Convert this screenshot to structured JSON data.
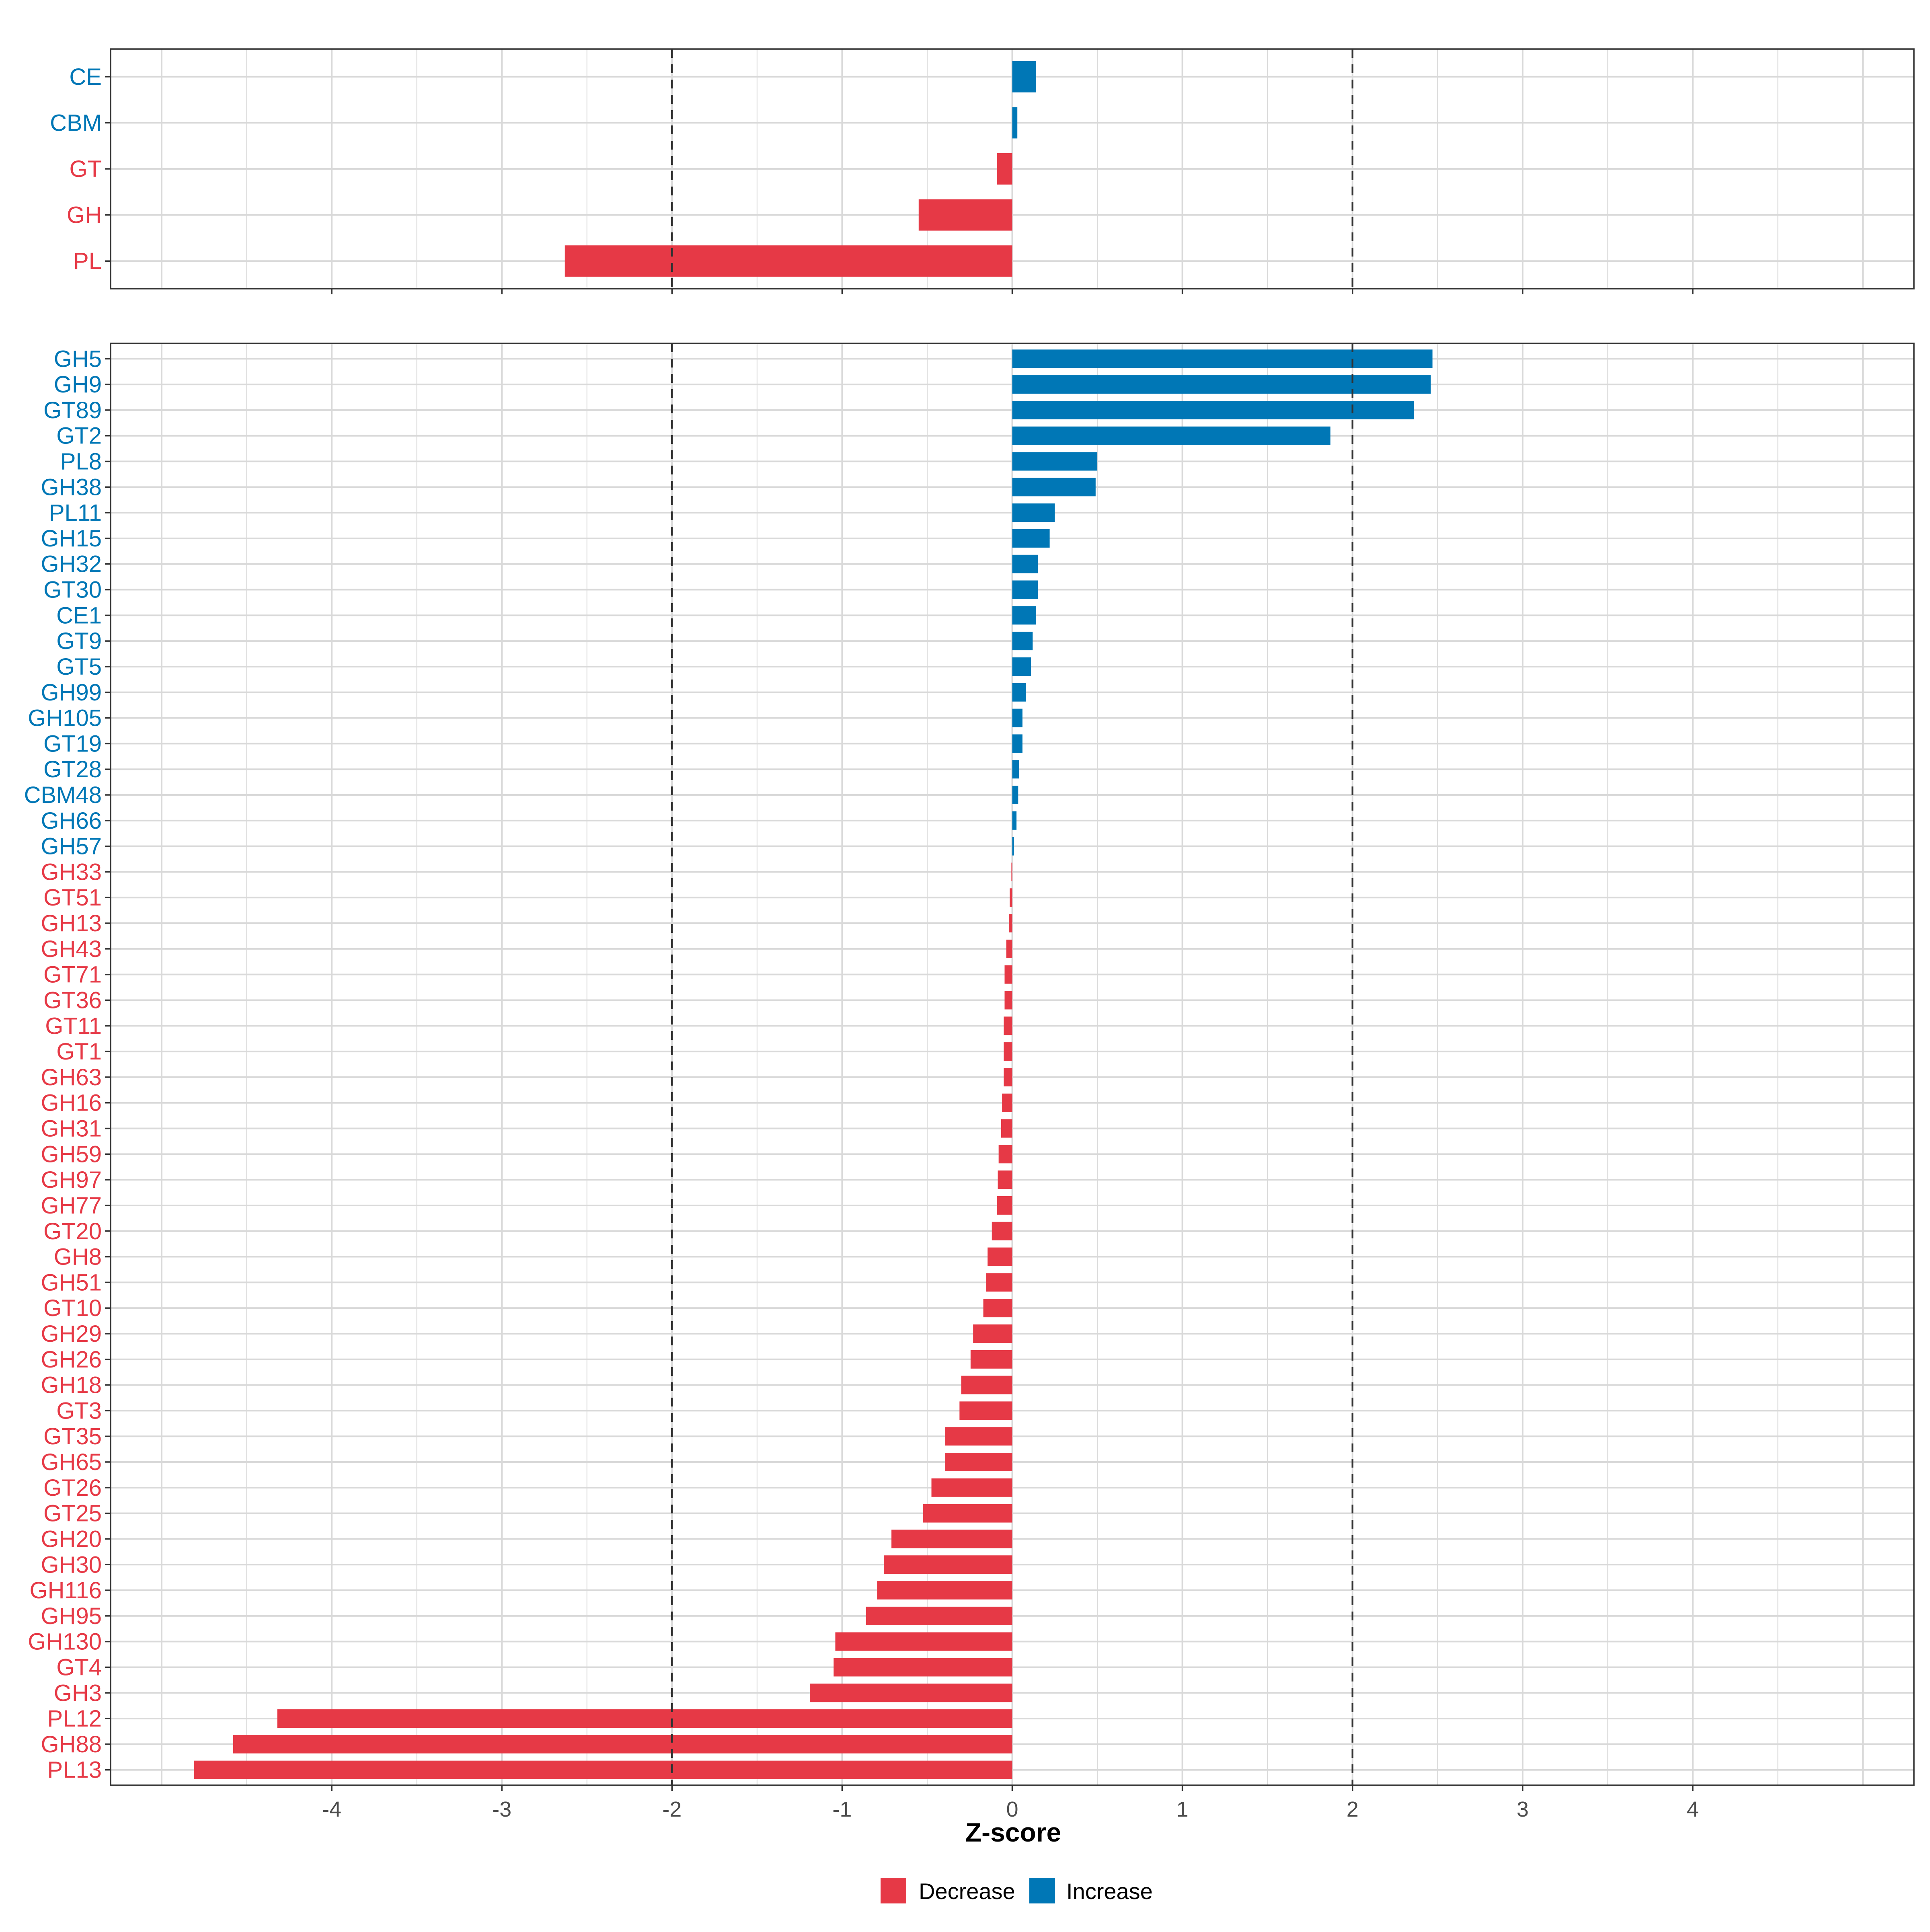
{
  "colors": {
    "decrease": "#E63946",
    "increase": "#0077B6",
    "grid": "#D9D9D9",
    "frame": "#333333",
    "threshold": "#333333"
  },
  "chart_data": [
    {
      "type": "bar",
      "orientation": "horizontal",
      "panel": "families",
      "categories": [
        "CE",
        "CBM",
        "GT",
        "GH",
        "PL"
      ],
      "values": [
        0.14,
        0.03,
        -0.09,
        -0.55,
        -2.63
      ],
      "xlim": [
        -5.3,
        5.3
      ],
      "x_ticks": [
        -4,
        -3,
        -2,
        -1,
        0,
        1,
        2,
        3,
        4
      ],
      "thresholds": [
        -2,
        2
      ],
      "grid": true
    },
    {
      "type": "bar",
      "orientation": "horizontal",
      "panel": "subfamilies",
      "categories": [
        "GH5",
        "GH9",
        "GT89",
        "GT2",
        "PL8",
        "GH38",
        "PL11",
        "GH15",
        "GH32",
        "GT30",
        "CE1",
        "GT9",
        "GT5",
        "GH99",
        "GH105",
        "GT19",
        "GT28",
        "CBM48",
        "GH66",
        "GH57",
        "GH33",
        "GT51",
        "GH13",
        "GH43",
        "GT71",
        "GT36",
        "GT11",
        "GT1",
        "GH63",
        "GH16",
        "GH31",
        "GH59",
        "GH97",
        "GH77",
        "GT20",
        "GH8",
        "GH51",
        "GT10",
        "GH29",
        "GH26",
        "GH18",
        "GT3",
        "GT35",
        "GH65",
        "GT26",
        "GT25",
        "GH20",
        "GH30",
        "GH116",
        "GH95",
        "GH130",
        "GT4",
        "GH3",
        "PL12",
        "GH88",
        "PL13"
      ],
      "values": [
        2.47,
        2.46,
        2.36,
        1.87,
        0.5,
        0.49,
        0.25,
        0.22,
        0.15,
        0.15,
        0.14,
        0.12,
        0.11,
        0.08,
        0.06,
        0.06,
        0.04,
        0.035,
        0.025,
        0.01,
        -0.005,
        -0.015,
        -0.02,
        -0.035,
        -0.045,
        -0.045,
        -0.05,
        -0.05,
        -0.05,
        -0.06,
        -0.065,
        -0.08,
        -0.085,
        -0.09,
        -0.12,
        -0.145,
        -0.155,
        -0.17,
        -0.23,
        -0.245,
        -0.3,
        -0.31,
        -0.395,
        -0.395,
        -0.475,
        -0.525,
        -0.71,
        -0.755,
        -0.795,
        -0.86,
        -1.04,
        -1.05,
        -1.19,
        -4.32,
        -4.58,
        -4.81
      ],
      "xlim": [
        -5.3,
        5.3
      ],
      "x_ticks": [
        -4,
        -3,
        -2,
        -1,
        0,
        1,
        2,
        3,
        4
      ],
      "thresholds": [
        -2,
        2
      ],
      "xlabel": "Z-score",
      "grid": true
    }
  ],
  "legend": {
    "position": "bottom",
    "items": [
      {
        "label": "Decrease",
        "color_key": "decrease"
      },
      {
        "label": "Increase",
        "color_key": "increase"
      }
    ]
  }
}
